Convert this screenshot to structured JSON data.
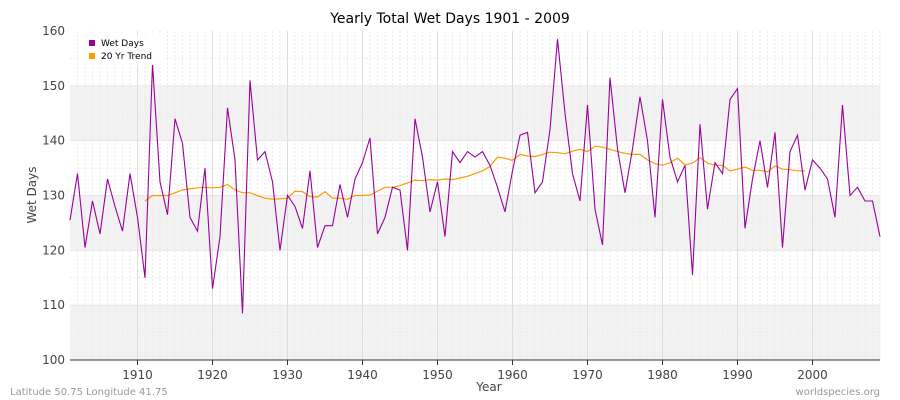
{
  "chart_data": {
    "type": "line",
    "title": "Yearly Total Wet Days 1901 - 2009",
    "xlabel": "Year",
    "ylabel": "Wet Days",
    "xlim": [
      1901,
      2009
    ],
    "ylim": [
      100,
      160
    ],
    "xticks": [
      1910,
      1920,
      1930,
      1940,
      1950,
      1960,
      1970,
      1980,
      1990,
      2000
    ],
    "yticks": [
      100,
      110,
      120,
      130,
      140,
      150,
      160
    ],
    "grid": true,
    "legend_position": "top-left",
    "series": [
      {
        "name": "Wet Days",
        "color": "#990099",
        "x": [
          1901,
          1902,
          1903,
          1904,
          1905,
          1906,
          1907,
          1908,
          1909,
          1910,
          1911,
          1912,
          1913,
          1914,
          1915,
          1916,
          1917,
          1918,
          1919,
          1920,
          1921,
          1922,
          1923,
          1924,
          1925,
          1926,
          1927,
          1928,
          1929,
          1930,
          1931,
          1932,
          1933,
          1934,
          1935,
          1936,
          1937,
          1938,
          1939,
          1940,
          1941,
          1942,
          1943,
          1944,
          1945,
          1946,
          1947,
          1948,
          1949,
          1950,
          1951,
          1952,
          1953,
          1954,
          1955,
          1956,
          1957,
          1958,
          1959,
          1960,
          1961,
          1962,
          1963,
          1964,
          1965,
          1966,
          1967,
          1968,
          1969,
          1970,
          1971,
          1972,
          1973,
          1974,
          1975,
          1976,
          1977,
          1978,
          1979,
          1980,
          1981,
          1982,
          1983,
          1984,
          1985,
          1986,
          1987,
          1988,
          1989,
          1990,
          1991,
          1992,
          1993,
          1994,
          1995,
          1996,
          1997,
          1998,
          1999,
          2000,
          2001,
          2002,
          2003,
          2004,
          2005,
          2006,
          2007,
          2008,
          2009
        ],
        "values": [
          125.5,
          134,
          120.5,
          129,
          123,
          133,
          128,
          123.5,
          134,
          126,
          115,
          154,
          132.5,
          126.5,
          144,
          139.5,
          126,
          123.5,
          135,
          113,
          122.5,
          146,
          136.5,
          108.5,
          151,
          136.5,
          138,
          132.5,
          120,
          130,
          128,
          124,
          134.5,
          120.5,
          124.5,
          124.5,
          132,
          126,
          133,
          136,
          140.5,
          123,
          126,
          131.5,
          131,
          120,
          144,
          137,
          127,
          132.5,
          122.5,
          138,
          136,
          138,
          137,
          138,
          135.5,
          131.5,
          127,
          134.5,
          141,
          141.5,
          130.5,
          132.5,
          142,
          158.5,
          145,
          134,
          129,
          146.5,
          127.5,
          121,
          151.5,
          138.5,
          130.5,
          138.5,
          148,
          140,
          126,
          147.5,
          137,
          132.5,
          135.5,
          115.5,
          143,
          127.5,
          136,
          134,
          147.5,
          149.5,
          124,
          133,
          140,
          131.5,
          141.5,
          120.5,
          138,
          141,
          131,
          136.5,
          135,
          133,
          126,
          146.5,
          130,
          131.5,
          129,
          129,
          122.5
        ]
      },
      {
        "name": "20 Yr Trend",
        "color": "#ff9900",
        "x": [
          1911,
          1912,
          1913,
          1914,
          1915,
          1916,
          1917,
          1918,
          1919,
          1920,
          1921,
          1922,
          1923,
          1924,
          1925,
          1926,
          1927,
          1928,
          1929,
          1930,
          1931,
          1932,
          1933,
          1934,
          1935,
          1936,
          1937,
          1938,
          1939,
          1940,
          1941,
          1942,
          1943,
          1944,
          1945,
          1946,
          1947,
          1948,
          1949,
          1950,
          1951,
          1952,
          1953,
          1954,
          1955,
          1956,
          1957,
          1958,
          1959,
          1960,
          1961,
          1962,
          1963,
          1964,
          1965,
          1966,
          1967,
          1968,
          1969,
          1970,
          1971,
          1972,
          1973,
          1974,
          1975,
          1976,
          1977,
          1978,
          1979,
          1980,
          1981,
          1982,
          1983,
          1984,
          1985,
          1986,
          1987,
          1988,
          1989,
          1990,
          1991,
          1992,
          1993,
          1994,
          1995,
          1996,
          1997,
          1998,
          1999
        ],
        "values": [
          129,
          130,
          130,
          130,
          130.5,
          131,
          131.2,
          131.4,
          131.5,
          131.4,
          131.5,
          132,
          131,
          130.5,
          130.5,
          130,
          129.5,
          129.3,
          129.4,
          129.5,
          130.8,
          130.7,
          129.8,
          129.7,
          130.7,
          129.5,
          129.5,
          129.3,
          130,
          130,
          130.1,
          130.8,
          131.5,
          131.5,
          131.8,
          132.3,
          132.8,
          132.7,
          132.9,
          132.8,
          133,
          132.9,
          133.2,
          133.5,
          134,
          134.5,
          135.3,
          137,
          136.8,
          136.4,
          137.5,
          137.2,
          137.1,
          137.5,
          137.9,
          137.8,
          137.6,
          138.1,
          138.4,
          138,
          139,
          138.8,
          138.4,
          138,
          137.7,
          137.5,
          137.5,
          136.5,
          135.8,
          135.5,
          136,
          136.8,
          135.6,
          135.9,
          136.9,
          135.9,
          135.5,
          135.5,
          134.5,
          134.8,
          135.2,
          134.6,
          134.6,
          134.3,
          135.4,
          134.8,
          134.7,
          134.5,
          134.5
        ]
      }
    ]
  },
  "footer": {
    "coords": "Latitude 50.75 Longitude 41.75",
    "source": "worldspecies.org"
  }
}
